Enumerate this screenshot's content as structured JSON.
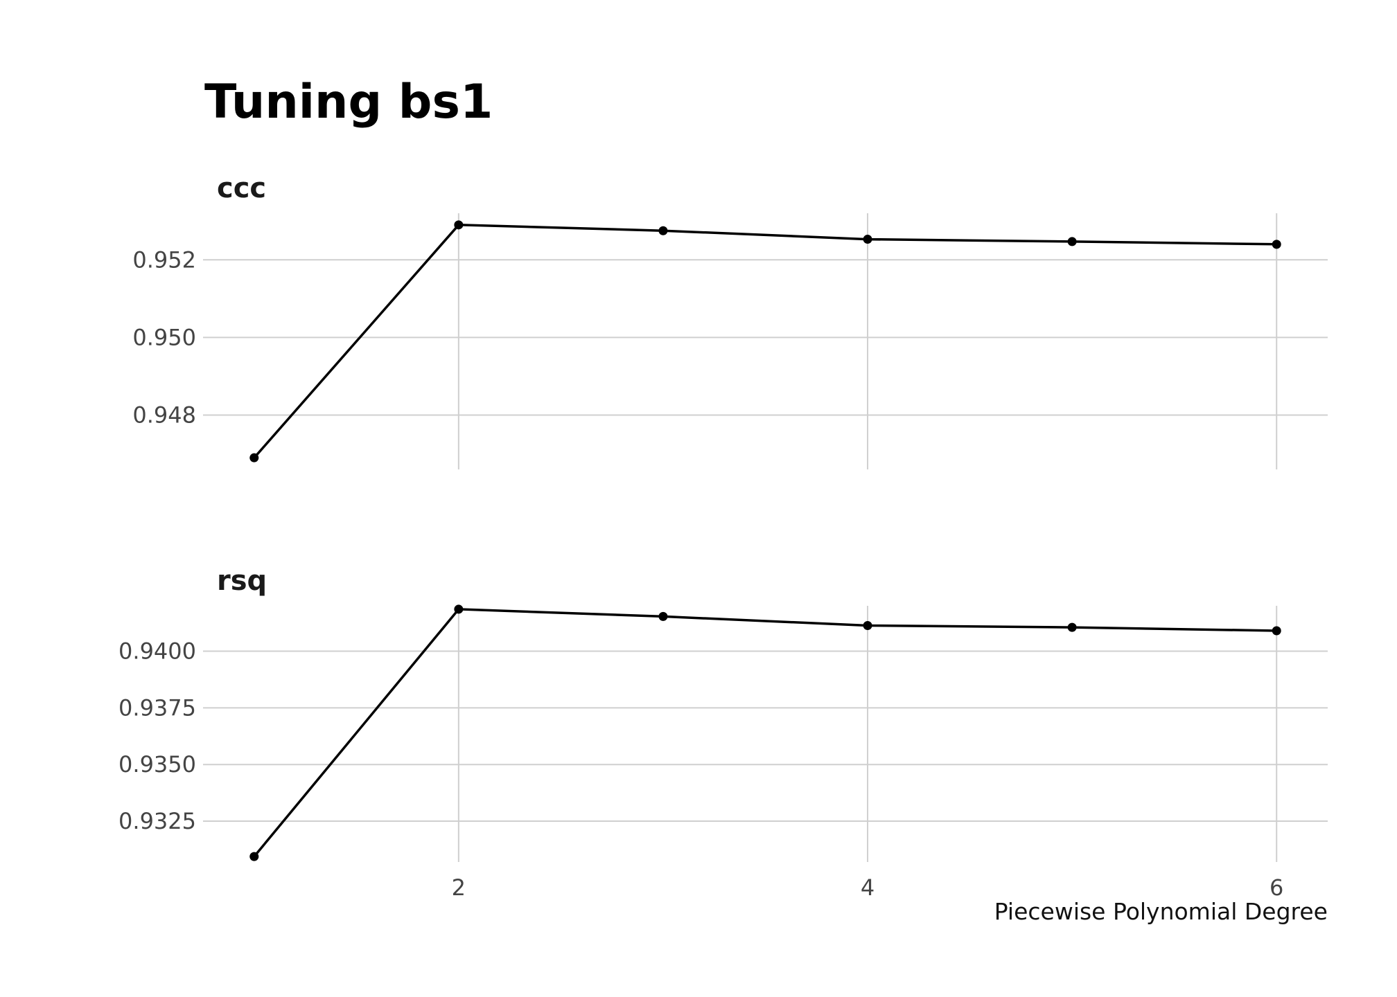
{
  "chart_data": {
    "type": "line",
    "title": "Tuning bs1",
    "xlabel": "Piecewise Polynomial Degree",
    "x_ticks": [
      2,
      4,
      6
    ],
    "x": [
      1,
      2,
      3,
      4,
      5,
      6
    ],
    "xlim": [
      0.75,
      6.25
    ],
    "grid": true,
    "facets": [
      {
        "label": "ccc",
        "values": [
          0.9469,
          0.9529,
          0.95275,
          0.95253,
          0.95247,
          0.9524
        ],
        "ylim": [
          0.9466,
          0.9532
        ],
        "y_ticks": [
          0.948,
          0.95,
          0.952
        ],
        "y_tick_labels": [
          "0.948",
          "0.950",
          "0.952"
        ]
      },
      {
        "label": "rsq",
        "values": [
          0.93094,
          0.94185,
          0.94153,
          0.94113,
          0.94105,
          0.9409
        ],
        "ylim": [
          0.9307,
          0.942
        ],
        "y_ticks": [
          0.9325,
          0.935,
          0.9375,
          0.94
        ],
        "y_tick_labels": [
          "0.9325",
          "0.9350",
          "0.9375",
          "0.9400"
        ]
      }
    ]
  }
}
